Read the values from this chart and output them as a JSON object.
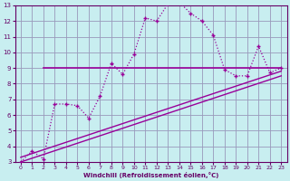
{
  "xlabel": "Windchill (Refroidissement éolien,°C)",
  "bg_color": "#c8eef0",
  "plot_bg_color": "#c8eef0",
  "grid_color": "#9999bb",
  "line_color": "#990099",
  "xlim": [
    -0.5,
    23.5
  ],
  "ylim": [
    3,
    13
  ],
  "xticks": [
    0,
    1,
    2,
    3,
    4,
    5,
    6,
    7,
    8,
    9,
    10,
    11,
    12,
    13,
    14,
    15,
    16,
    17,
    18,
    19,
    20,
    21,
    22,
    23
  ],
  "yticks": [
    3,
    4,
    5,
    6,
    7,
    8,
    9,
    10,
    11,
    12,
    13
  ],
  "line1_x": [
    0,
    1,
    2,
    3,
    4,
    5,
    6,
    7,
    8,
    9,
    10,
    11,
    12,
    13,
    14,
    15,
    16,
    17,
    18,
    19,
    20,
    21,
    22,
    23
  ],
  "line1_y": [
    3.0,
    3.7,
    3.2,
    6.7,
    6.7,
    6.6,
    5.8,
    7.2,
    9.3,
    8.6,
    9.9,
    12.2,
    12.0,
    13.1,
    13.2,
    12.5,
    12.0,
    11.1,
    8.9,
    8.5,
    8.5,
    10.4,
    8.7,
    9.0
  ],
  "line2_x": [
    2,
    4,
    4,
    19,
    19,
    23
  ],
  "line2_y": [
    9.0,
    9.0,
    9.0,
    9.0,
    9.0,
    9.0
  ],
  "line3_x": [
    0,
    23
  ],
  "line3_y": [
    3.0,
    8.5
  ],
  "line4_x": [
    0,
    23
  ],
  "line4_y": [
    3.3,
    8.8
  ]
}
